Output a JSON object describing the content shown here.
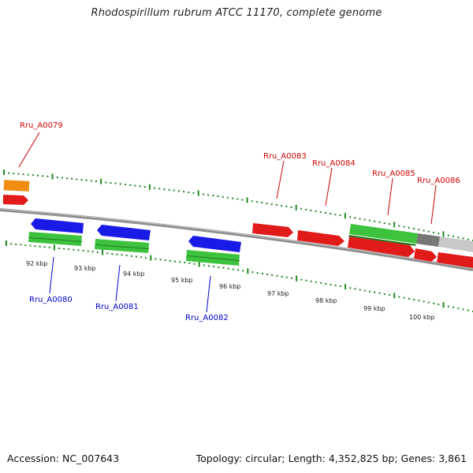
{
  "title": "Rhodospirillum rubrum ATCC 11170, complete genome",
  "footer": {
    "accession": "Accession: NC_007643",
    "stats": "Topology: circular; Length: 4,352,825 bp; Genes: 3,861"
  },
  "colors": {
    "forward_gene": "#e11a1a",
    "reverse_gene": "#1a1ae6",
    "cds_green": "#3cc23c",
    "other_gene": "#f08c10",
    "gray_feature": "#777777",
    "light_gray_feature": "#c8c8c8",
    "tick_green": "#1f8a1f",
    "forward_label": "#cc0000",
    "reverse_label": "#0000cc",
    "backbone": "#8c8c8c"
  },
  "scale_labels": [
    "92 kbp",
    "93 kbp",
    "94 kbp",
    "95 kbp",
    "96 kbp",
    "97 kbp",
    "98 kbp",
    "99 kbp",
    "100 kbp"
  ],
  "gene_labels": {
    "forward": [
      "Rru_A0079",
      "Rru_A0083",
      "Rru_A0084",
      "Rru_A0085",
      "Rru_A0086"
    ],
    "reverse": [
      "Rru_A0080",
      "Rru_A0081",
      "Rru_A0082"
    ]
  }
}
